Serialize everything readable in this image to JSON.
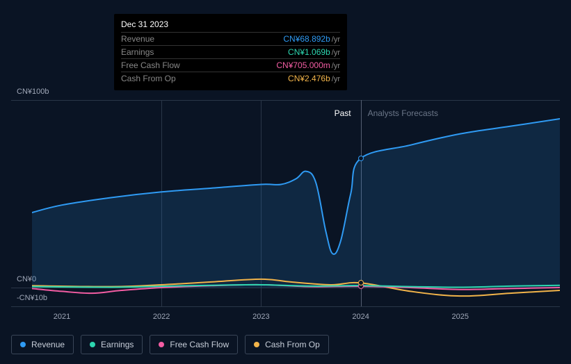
{
  "tooltip": {
    "date": "Dec 31 2023",
    "rows": [
      {
        "label": "Revenue",
        "value": "CN¥68.892b",
        "suffix": "/yr",
        "color": "#2f9bf4"
      },
      {
        "label": "Earnings",
        "value": "CN¥1.069b",
        "suffix": "/yr",
        "color": "#2dd6b0"
      },
      {
        "label": "Free Cash Flow",
        "value": "CN¥705.000m",
        "suffix": "/yr",
        "color": "#f35da3"
      },
      {
        "label": "Cash From Op",
        "value": "CN¥2.476b",
        "suffix": "/yr",
        "color": "#f2b44a"
      }
    ]
  },
  "chart": {
    "type": "line",
    "background": "#0a1424",
    "grid_color": "#2a3648",
    "yaxis": {
      "ticks": [
        {
          "label": "CN¥100b",
          "value": 100
        },
        {
          "label": "CN¥0",
          "value": 0
        },
        {
          "label": "-CN¥10b",
          "value": -10
        }
      ],
      "range": [
        -10,
        100
      ]
    },
    "xaxis": {
      "ticks": [
        "2021",
        "2022",
        "2023",
        "2024",
        "2025"
      ],
      "range": [
        2020.7,
        2026.0
      ]
    },
    "sections": {
      "past": {
        "label": "Past",
        "end_x": 2024.0,
        "color": "#ffffff"
      },
      "forecast": {
        "label": "Analysts Forecasts",
        "start_x": 2024.0,
        "color": "#6b7688"
      }
    },
    "hover_x": 2024.0,
    "vlines_x": [
      2022.0,
      2023.0,
      2024.0
    ],
    "series": [
      {
        "name": "Revenue",
        "key": "revenue",
        "color": "#2f9bf4",
        "line_width": 2,
        "fill": true,
        "fill_opacity": 0.15,
        "points": [
          [
            2020.7,
            40
          ],
          [
            2021.0,
            44
          ],
          [
            2021.5,
            48
          ],
          [
            2022.0,
            51
          ],
          [
            2022.5,
            53
          ],
          [
            2023.0,
            55
          ],
          [
            2023.2,
            55
          ],
          [
            2023.35,
            58
          ],
          [
            2023.45,
            62
          ],
          [
            2023.55,
            56
          ],
          [
            2023.65,
            30
          ],
          [
            2023.72,
            18
          ],
          [
            2023.8,
            25
          ],
          [
            2023.9,
            50
          ],
          [
            2024.0,
            68.9
          ],
          [
            2024.5,
            76
          ],
          [
            2025.0,
            82
          ],
          [
            2025.5,
            86
          ],
          [
            2026.0,
            90
          ]
        ]
      },
      {
        "name": "Cash From Op",
        "key": "cashfromop",
        "color": "#f2b44a",
        "line_width": 2,
        "fill": false,
        "points": [
          [
            2020.7,
            1
          ],
          [
            2021.5,
            0.5
          ],
          [
            2022.0,
            1.5
          ],
          [
            2022.5,
            3
          ],
          [
            2023.0,
            4.5
          ],
          [
            2023.3,
            3
          ],
          [
            2023.7,
            1.5
          ],
          [
            2024.0,
            2.5
          ],
          [
            2024.5,
            -2
          ],
          [
            2025.0,
            -4.5
          ],
          [
            2025.5,
            -3
          ],
          [
            2026.0,
            -1.5
          ]
        ]
      },
      {
        "name": "Free Cash Flow",
        "key": "fcf",
        "color": "#f35da3",
        "line_width": 2,
        "fill": false,
        "points": [
          [
            2020.7,
            -0.5
          ],
          [
            2021.0,
            -2
          ],
          [
            2021.3,
            -3
          ],
          [
            2021.6,
            -1.5
          ],
          [
            2022.0,
            0
          ],
          [
            2022.5,
            1
          ],
          [
            2023.0,
            1.5
          ],
          [
            2023.5,
            0.5
          ],
          [
            2024.0,
            0.7
          ],
          [
            2024.5,
            0
          ],
          [
            2025.0,
            -1
          ],
          [
            2025.5,
            -0.5
          ],
          [
            2026.0,
            0
          ]
        ]
      },
      {
        "name": "Earnings",
        "key": "earnings",
        "color": "#2dd6b0",
        "line_width": 2,
        "fill": false,
        "points": [
          [
            2020.7,
            0.5
          ],
          [
            2021.5,
            0.2
          ],
          [
            2022.0,
            0.7
          ],
          [
            2022.5,
            1.2
          ],
          [
            2023.0,
            1.5
          ],
          [
            2023.5,
            0.8
          ],
          [
            2024.0,
            1.07
          ],
          [
            2024.5,
            0.5
          ],
          [
            2025.0,
            0.2
          ],
          [
            2025.5,
            0.8
          ],
          [
            2026.0,
            1.2
          ]
        ]
      }
    ],
    "markers": [
      {
        "series": "revenue",
        "x": 2024.0,
        "y": 68.9
      },
      {
        "series": "earnings",
        "x": 2024.0,
        "y": 1.07
      },
      {
        "series": "fcf",
        "x": 2024.0,
        "y": 0.7
      },
      {
        "series": "cashfromop",
        "x": 2024.0,
        "y": 2.5
      }
    ],
    "legend": [
      {
        "label": "Revenue",
        "color": "#2f9bf4"
      },
      {
        "label": "Earnings",
        "color": "#2dd6b0"
      },
      {
        "label": "Free Cash Flow",
        "color": "#f35da3"
      },
      {
        "label": "Cash From Op",
        "color": "#f2b44a"
      }
    ]
  }
}
